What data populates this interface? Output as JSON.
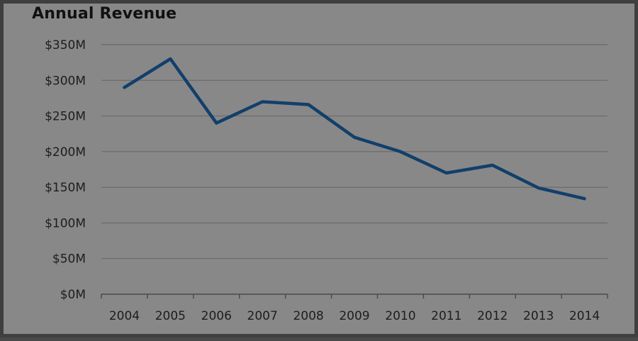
{
  "chart_data": {
    "type": "line",
    "title": "Annual Revenue",
    "xlabel": "",
    "ylabel": "",
    "x": [
      "2004",
      "2005",
      "2006",
      "2007",
      "2008",
      "2009",
      "2010",
      "2011",
      "2012",
      "2013",
      "2014"
    ],
    "series": [
      {
        "values": [
          290,
          330,
          240,
          270,
          266,
          220,
          200,
          170,
          181,
          149,
          134
        ]
      }
    ],
    "y_ticks": [
      "$0M",
      "$50M",
      "$100M",
      "$150M",
      "$200M",
      "$250M",
      "$300M",
      "$350M"
    ],
    "ylim": [
      0,
      350
    ],
    "grid": true,
    "legend": "none",
    "colors": {
      "line": "#123f6b",
      "grid": "#6e6e6e",
      "axis": "#4a4a4a",
      "background": "#888888"
    }
  }
}
